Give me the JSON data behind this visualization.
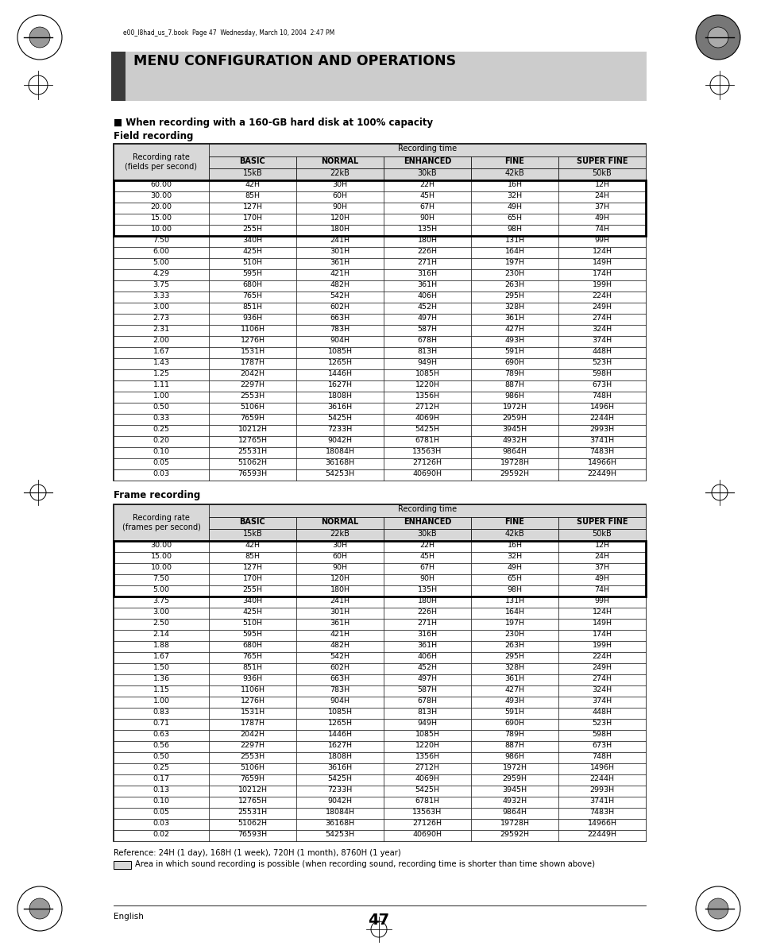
{
  "title": "MENU CONFIGURATION AND OPERATIONS",
  "header_text": "e00_l8had_us_7.book  Page 47  Wednesday, March 10, 2004  2:47 PM",
  "section1_title": "■ When recording with a 160-GB hard disk at 100% capacity",
  "section1_subtitle": "Field recording",
  "section2_subtitle": "Frame recording",
  "table_header_row1": "Recording time",
  "table_col_headers": [
    "BASIC",
    "NORMAL",
    "ENHANCED",
    "FINE",
    "SUPER FINE"
  ],
  "table_col_subheaders": [
    "15kB",
    "22kB",
    "30kB",
    "42kB",
    "50kB"
  ],
  "field_col0_label": "Recording rate\n(fields per second)",
  "frame_col0_label": "Recording rate\n(frames per second)",
  "field_data": [
    [
      "60.00",
      "42H",
      "30H",
      "22H",
      "16H",
      "12H"
    ],
    [
      "30.00",
      "85H",
      "60H",
      "45H",
      "32H",
      "24H"
    ],
    [
      "20.00",
      "127H",
      "90H",
      "67H",
      "49H",
      "37H"
    ],
    [
      "15.00",
      "170H",
      "120H",
      "90H",
      "65H",
      "49H"
    ],
    [
      "10.00",
      "255H",
      "180H",
      "135H",
      "98H",
      "74H"
    ],
    [
      "7.50",
      "340H",
      "241H",
      "180H",
      "131H",
      "99H"
    ],
    [
      "6.00",
      "425H",
      "301H",
      "226H",
      "164H",
      "124H"
    ],
    [
      "5.00",
      "510H",
      "361H",
      "271H",
      "197H",
      "149H"
    ],
    [
      "4.29",
      "595H",
      "421H",
      "316H",
      "230H",
      "174H"
    ],
    [
      "3.75",
      "680H",
      "482H",
      "361H",
      "263H",
      "199H"
    ],
    [
      "3.33",
      "765H",
      "542H",
      "406H",
      "295H",
      "224H"
    ],
    [
      "3.00",
      "851H",
      "602H",
      "452H",
      "328H",
      "249H"
    ],
    [
      "2.73",
      "936H",
      "663H",
      "497H",
      "361H",
      "274H"
    ],
    [
      "2.31",
      "1106H",
      "783H",
      "587H",
      "427H",
      "324H"
    ],
    [
      "2.00",
      "1276H",
      "904H",
      "678H",
      "493H",
      "374H"
    ],
    [
      "1.67",
      "1531H",
      "1085H",
      "813H",
      "591H",
      "448H"
    ],
    [
      "1.43",
      "1787H",
      "1265H",
      "949H",
      "690H",
      "523H"
    ],
    [
      "1.25",
      "2042H",
      "1446H",
      "1085H",
      "789H",
      "598H"
    ],
    [
      "1.11",
      "2297H",
      "1627H",
      "1220H",
      "887H",
      "673H"
    ],
    [
      "1.00",
      "2553H",
      "1808H",
      "1356H",
      "986H",
      "748H"
    ],
    [
      "0.50",
      "5106H",
      "3616H",
      "2712H",
      "1972H",
      "1496H"
    ],
    [
      "0.33",
      "7659H",
      "5425H",
      "4069H",
      "2959H",
      "2244H"
    ],
    [
      "0.25",
      "10212H",
      "7233H",
      "5425H",
      "3945H",
      "2993H"
    ],
    [
      "0.20",
      "12765H",
      "9042H",
      "6781H",
      "4932H",
      "3741H"
    ],
    [
      "0.10",
      "25531H",
      "18084H",
      "13563H",
      "9864H",
      "7483H"
    ],
    [
      "0.05",
      "51062H",
      "36168H",
      "27126H",
      "19728H",
      "14966H"
    ],
    [
      "0.03",
      "76593H",
      "54253H",
      "40690H",
      "29592H",
      "22449H"
    ]
  ],
  "field_bold_rows": [
    0,
    1,
    2,
    3,
    4
  ],
  "frame_data": [
    [
      "30.00",
      "42H",
      "30H",
      "22H",
      "16H",
      "12H"
    ],
    [
      "15.00",
      "85H",
      "60H",
      "45H",
      "32H",
      "24H"
    ],
    [
      "10.00",
      "127H",
      "90H",
      "67H",
      "49H",
      "37H"
    ],
    [
      "7.50",
      "170H",
      "120H",
      "90H",
      "65H",
      "49H"
    ],
    [
      "5.00",
      "255H",
      "180H",
      "135H",
      "98H",
      "74H"
    ],
    [
      "3.75",
      "340H",
      "241H",
      "180H",
      "131H",
      "99H"
    ],
    [
      "3.00",
      "425H",
      "301H",
      "226H",
      "164H",
      "124H"
    ],
    [
      "2.50",
      "510H",
      "361H",
      "271H",
      "197H",
      "149H"
    ],
    [
      "2.14",
      "595H",
      "421H",
      "316H",
      "230H",
      "174H"
    ],
    [
      "1.88",
      "680H",
      "482H",
      "361H",
      "263H",
      "199H"
    ],
    [
      "1.67",
      "765H",
      "542H",
      "406H",
      "295H",
      "224H"
    ],
    [
      "1.50",
      "851H",
      "602H",
      "452H",
      "328H",
      "249H"
    ],
    [
      "1.36",
      "936H",
      "663H",
      "497H",
      "361H",
      "274H"
    ],
    [
      "1.15",
      "1106H",
      "783H",
      "587H",
      "427H",
      "324H"
    ],
    [
      "1.00",
      "1276H",
      "904H",
      "678H",
      "493H",
      "374H"
    ],
    [
      "0.83",
      "1531H",
      "1085H",
      "813H",
      "591H",
      "448H"
    ],
    [
      "0.71",
      "1787H",
      "1265H",
      "949H",
      "690H",
      "523H"
    ],
    [
      "0.63",
      "2042H",
      "1446H",
      "1085H",
      "789H",
      "598H"
    ],
    [
      "0.56",
      "2297H",
      "1627H",
      "1220H",
      "887H",
      "673H"
    ],
    [
      "0.50",
      "2553H",
      "1808H",
      "1356H",
      "986H",
      "748H"
    ],
    [
      "0.25",
      "5106H",
      "3616H",
      "2712H",
      "1972H",
      "1496H"
    ],
    [
      "0.17",
      "7659H",
      "5425H",
      "4069H",
      "2959H",
      "2244H"
    ],
    [
      "0.13",
      "10212H",
      "7233H",
      "5425H",
      "3945H",
      "2993H"
    ],
    [
      "0.10",
      "12765H",
      "9042H",
      "6781H",
      "4932H",
      "3741H"
    ],
    [
      "0.05",
      "25531H",
      "18084H",
      "13563H",
      "9864H",
      "7483H"
    ],
    [
      "0.03",
      "51062H",
      "36168H",
      "27126H",
      "19728H",
      "14966H"
    ],
    [
      "0.02",
      "76593H",
      "54253H",
      "40690H",
      "29592H",
      "22449H"
    ]
  ],
  "frame_bold_rows": [
    0,
    1,
    2,
    3,
    4
  ],
  "footnote1": "Reference: 24H (1 day), 168H (1 week), 720H (1 month), 8760H (1 year)",
  "page_number": "47",
  "page_label": "English",
  "bg_color": "#ffffff",
  "header_bg": "#cccccc",
  "header_bar_color": "#3a3a3a",
  "table_header_bg": "#d8d8d8",
  "font_size_table": 6.8,
  "font_size_title": 12.5
}
